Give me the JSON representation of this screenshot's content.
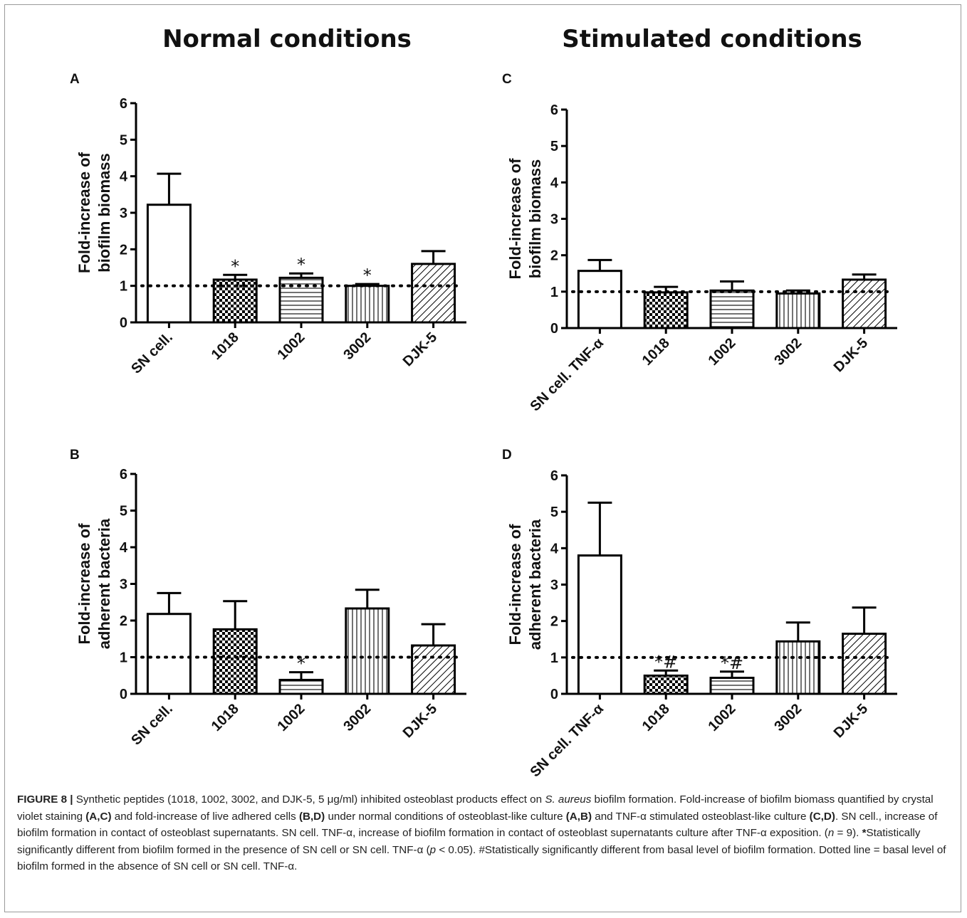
{
  "headers": {
    "left": "Normal conditions",
    "right": "Stimulated conditions"
  },
  "colors": {
    "bar_stroke": "#000000",
    "dotted_line": "#000000",
    "axis": "#000000",
    "caption_text": "#222222"
  },
  "chart_data": [
    {
      "panel": "A",
      "type": "bar",
      "ylabel_lines": [
        "Fold-increase of",
        "biofilm biomass"
      ],
      "categories": [
        "SN cell.",
        "1018",
        "1002",
        "3002",
        "DJK-5"
      ],
      "values": [
        3.22,
        1.17,
        1.22,
        1.0,
        1.6
      ],
      "errors": [
        0.85,
        0.13,
        0.12,
        0.05,
        0.35
      ],
      "patterns": [
        "none",
        "check",
        "hlines",
        "vlines",
        "diag"
      ],
      "annotations": [
        "",
        "*",
        "*",
        "*",
        ""
      ],
      "ylim": [
        0,
        6
      ],
      "yticks": [
        "0",
        "1",
        "2",
        "3",
        "4",
        "5",
        "6"
      ],
      "baseline": 1
    },
    {
      "panel": "B",
      "type": "bar",
      "ylabel_lines": [
        "Fold-increase of",
        "adherent bacteria"
      ],
      "categories": [
        "SN cell.",
        "1018",
        "1002",
        "3002",
        "DJK-5"
      ],
      "values": [
        2.18,
        1.76,
        0.38,
        2.33,
        1.32
      ],
      "errors": [
        0.57,
        0.77,
        0.21,
        0.51,
        0.58
      ],
      "patterns": [
        "none",
        "check",
        "hlines",
        "vlines",
        "diag"
      ],
      "annotations": [
        "",
        "",
        "*",
        "",
        ""
      ],
      "ylim": [
        0,
        6
      ],
      "yticks": [
        "0",
        "1",
        "2",
        "3",
        "4",
        "5",
        "6"
      ],
      "baseline": 1
    },
    {
      "panel": "C",
      "type": "bar",
      "ylabel_lines": [
        "Fold-increase of",
        "biofilm biomass"
      ],
      "categories": [
        "SN cell. TNF-α",
        "1018",
        "1002",
        "3002",
        "DJK-5"
      ],
      "values": [
        1.57,
        0.98,
        1.03,
        0.95,
        1.33
      ],
      "errors": [
        0.3,
        0.15,
        0.25,
        0.08,
        0.14
      ],
      "patterns": [
        "none",
        "check",
        "hlines",
        "vlines",
        "diag"
      ],
      "annotations": [
        "",
        "",
        "",
        "",
        ""
      ],
      "ylim": [
        0,
        6
      ],
      "yticks": [
        "0",
        "1",
        "2",
        "3",
        "4",
        "5",
        "6"
      ],
      "baseline": 1
    },
    {
      "panel": "D",
      "type": "bar",
      "ylabel_lines": [
        "Fold-increase of",
        "adherent bacteria"
      ],
      "categories": [
        "SN cell. TNF-α",
        "1018",
        "1002",
        "3002",
        "DJK-5"
      ],
      "values": [
        3.8,
        0.5,
        0.44,
        1.44,
        1.65
      ],
      "errors": [
        1.45,
        0.14,
        0.17,
        0.52,
        0.72
      ],
      "patterns": [
        "none",
        "check",
        "hlines",
        "vlines",
        "diag"
      ],
      "annotations": [
        "",
        "*#",
        "*#",
        "",
        ""
      ],
      "ylim": [
        0,
        6
      ],
      "yticks": [
        "0",
        "1",
        "2",
        "3",
        "4",
        "5",
        "6"
      ],
      "baseline": 1
    }
  ],
  "caption": {
    "figure_label": "FIGURE 8 |",
    "t1": " Synthetic peptides (1018, 1002, 3002, and DJK-5, 5 μg/ml) inhibited osteoblast products effect on ",
    "species": "S. aureus",
    "t2": " biofilm formation. Fold-increase of biofilm biomass quantified by crystal violet staining ",
    "ref_ac": "(A,C)",
    "t3": " and fold-increase of live adhered cells ",
    "ref_bd": "(B,D)",
    "t4": " under normal conditions of osteoblast-like culture ",
    "ref_ab": "(A,B)",
    "t5": " and TNF-α stimulated osteoblast-like culture ",
    "ref_cd": "(C,D)",
    "t6": ". SN cell., increase of biofilm formation in contact of osteoblast supernatants. SN cell. TNF-α, increase of biofilm formation in contact of osteoblast supernatants culture after TNF-α exposition. (",
    "n_italic": "n",
    "t7": " = 9). ",
    "star": "*",
    "t8": "Statistically significantly different from biofilm formed in the presence of SN cell or SN cell. TNF-α (",
    "p_italic": "p",
    "t9": " < 0.05). #Statistically significantly different from basal level of biofilm formation. Dotted line = basal level of biofilm formed in the absence of SN cell or SN cell. TNF-α."
  }
}
